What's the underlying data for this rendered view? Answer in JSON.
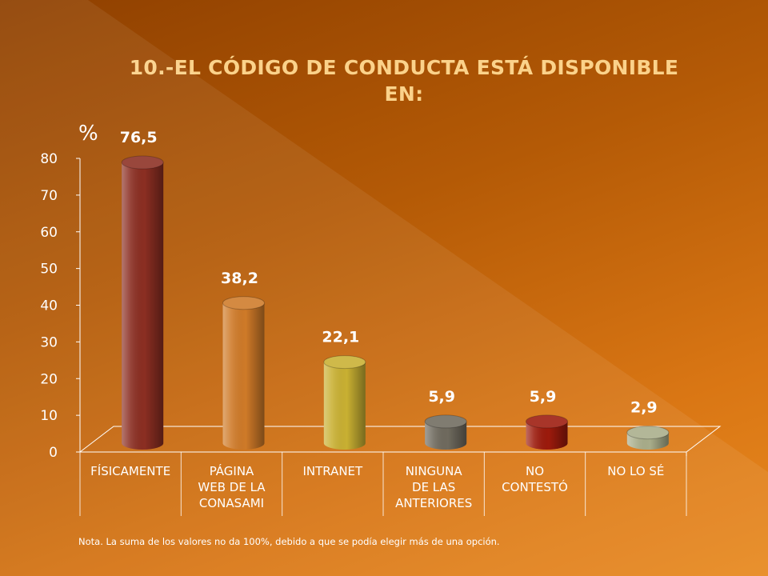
{
  "slide": {
    "title_line1": "10.-EL CÓDIGO DE CONDUCTA ESTÁ DISPONIBLE",
    "title_line2": "EN:",
    "note": "Nota. La suma  de los valores no da 100%, debido a que se podía elegir más de una opción."
  },
  "colors": {
    "title": "#fbd28a",
    "text": "#ffffff",
    "background_dark": "#8f4000",
    "background_light": "#e8891f"
  },
  "chart_data": {
    "type": "bar",
    "style": "3d-cylinder",
    "title": "10.-EL CÓDIGO DE CONDUCTA ESTÁ DISPONIBLE EN:",
    "ylabel": "%",
    "xlabel": "",
    "ylim": [
      0,
      80
    ],
    "yticks": [
      0,
      10,
      20,
      30,
      40,
      50,
      60,
      70,
      80
    ],
    "grid": false,
    "legend": "none",
    "categories": [
      [
        "FÍSICAMENTE"
      ],
      [
        "PÁGINA",
        "WEB DE LA",
        "CONASAMI"
      ],
      [
        "INTRANET"
      ],
      [
        "NINGUNA",
        "DE LAS",
        "ANTERIORES"
      ],
      [
        "NO",
        "CONTESTÓ"
      ],
      [
        "NO LO SÉ"
      ]
    ],
    "values": [
      76.5,
      38.2,
      22.1,
      5.9,
      5.9,
      2.9
    ],
    "value_labels": [
      "76,5",
      "38,2",
      "22,1",
      "5,9",
      "5,9",
      "2,9"
    ],
    "bar_colors": [
      "#8b2e22",
      "#cf7a28",
      "#c9b032",
      "#6f6a5e",
      "#9c1a0c",
      "#a9ad8a"
    ]
  }
}
